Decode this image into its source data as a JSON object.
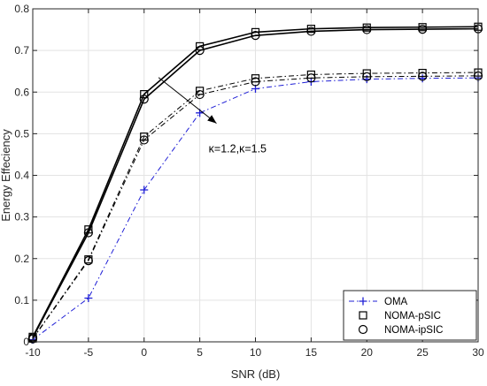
{
  "chart_data": {
    "type": "line",
    "title": "",
    "xlabel": "SNR (dB)",
    "ylabel": "Energy Effeciency",
    "xlim": [
      -10,
      30
    ],
    "ylim": [
      0,
      0.8
    ],
    "xticks": [
      "-10",
      "-5",
      "0",
      "5",
      "10",
      "15",
      "20",
      "25",
      "30"
    ],
    "yticks": [
      "0",
      "0.1",
      "0.2",
      "0.3",
      "0.4",
      "0.5",
      "0.6",
      "0.7",
      "0.8"
    ],
    "grid": true,
    "legend_position": "bottom-right",
    "x": [
      -10,
      -5,
      0,
      5,
      10,
      15,
      20,
      25,
      30
    ],
    "series": [
      {
        "name": "OMA",
        "values": [
          0.005,
          0.105,
          0.365,
          0.55,
          0.608,
          0.625,
          0.631,
          0.633,
          0.634
        ],
        "color": "#1f1fd6",
        "marker": "plus",
        "dash": "dashdot",
        "legend": true
      },
      {
        "name": "NOMA-pSIC",
        "values": [
          0.012,
          0.27,
          0.595,
          0.71,
          0.744,
          0.752,
          0.755,
          0.756,
          0.757
        ],
        "color": "#000000",
        "marker": "square",
        "dash": "solid",
        "legend": true
      },
      {
        "name": "NOMA-ipSIC",
        "values": [
          0.01,
          0.262,
          0.583,
          0.7,
          0.736,
          0.746,
          0.75,
          0.751,
          0.752
        ],
        "color": "#000000",
        "marker": "circle",
        "dash": "solid",
        "legend": true
      },
      {
        "name": "",
        "values": [
          0.008,
          0.198,
          0.493,
          0.603,
          0.633,
          0.642,
          0.645,
          0.646,
          0.647
        ],
        "color": "#000000",
        "marker": "square",
        "dash": "dashdot",
        "legend": false
      },
      {
        "name": "",
        "values": [
          0.007,
          0.195,
          0.485,
          0.594,
          0.625,
          0.634,
          0.637,
          0.638,
          0.639
        ],
        "color": "#000000",
        "marker": "circle",
        "dash": "dashdot",
        "legend": false
      }
    ],
    "annotation": {
      "text": "κ=1.2,κ=1.5",
      "arrow_from": [
        1.3,
        0.635
      ],
      "arrow_to": [
        6.5,
        0.525
      ],
      "text_at": [
        5.8,
        0.455
      ]
    }
  }
}
